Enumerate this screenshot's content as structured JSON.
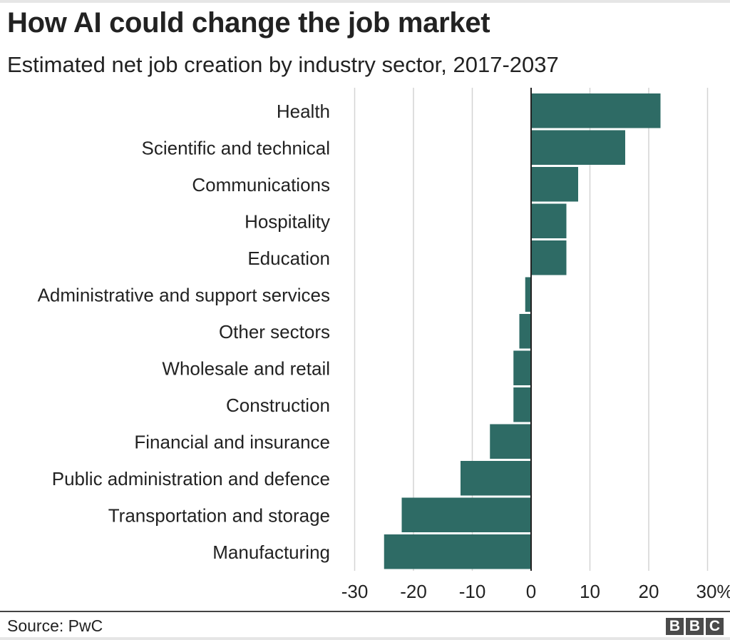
{
  "chart_data": {
    "type": "bar",
    "orientation": "horizontal",
    "title": "How AI could change the job market",
    "subtitle": "Estimated net job creation by industry sector, 2017-2037",
    "categories": [
      "Health",
      "Scientific and technical",
      "Communications",
      "Hospitality",
      "Education",
      "Administrative and support services",
      "Other sectors",
      "Wholesale and retail",
      "Construction",
      "Financial and insurance",
      "Public administration and defence",
      "Transportation and storage",
      "Manufacturing"
    ],
    "values": [
      22,
      16,
      8,
      6,
      6,
      -1,
      -2,
      -3,
      -3,
      -7,
      -12,
      -22,
      -25
    ],
    "xlim": [
      -30,
      30
    ],
    "xticks": [
      "-30",
      "-20",
      "-10",
      "0",
      "10",
      "20",
      "30%"
    ],
    "xtick_values": [
      -30,
      -20,
      -10,
      0,
      10,
      20,
      30
    ],
    "grid": true,
    "bar_color": "#2e6b65",
    "source": "Source: PwC"
  },
  "footer": {
    "logo": [
      "B",
      "B",
      "C"
    ]
  }
}
